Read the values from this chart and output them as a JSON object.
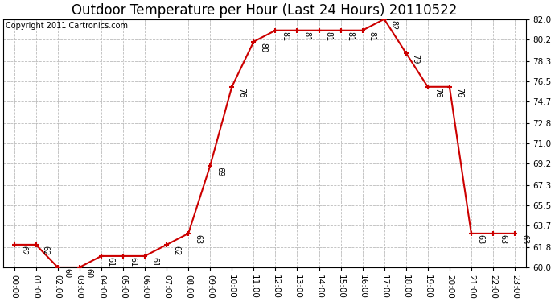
{
  "title": "Outdoor Temperature per Hour (Last 24 Hours) 20110522",
  "copyright": "Copyright 2011 Cartronics.com",
  "hours": [
    "00:00",
    "01:00",
    "02:00",
    "03:00",
    "04:00",
    "05:00",
    "06:00",
    "07:00",
    "08:00",
    "09:00",
    "10:00",
    "11:00",
    "12:00",
    "13:00",
    "14:00",
    "15:00",
    "16:00",
    "17:00",
    "18:00",
    "19:00",
    "20:00",
    "21:00",
    "22:00",
    "23:00"
  ],
  "temps": [
    62,
    62,
    60,
    60,
    61,
    61,
    61,
    62,
    63,
    69,
    76,
    80,
    81,
    81,
    81,
    81,
    81,
    82,
    79,
    76,
    76,
    63,
    63,
    63
  ],
  "line_color": "#cc0000",
  "marker_color": "#cc0000",
  "grid_color": "#bbbbbb",
  "bg_color": "#ffffff",
  "plot_bg_color": "#ffffff",
  "ylim_min": 60.0,
  "ylim_max": 82.0,
  "ytick_values": [
    60.0,
    61.8,
    63.7,
    65.5,
    67.3,
    69.2,
    71.0,
    72.8,
    74.7,
    76.5,
    78.3,
    80.2,
    82.0
  ],
  "title_fontsize": 12,
  "copyright_fontsize": 7,
  "label_fontsize": 7,
  "tick_fontsize": 7.5
}
